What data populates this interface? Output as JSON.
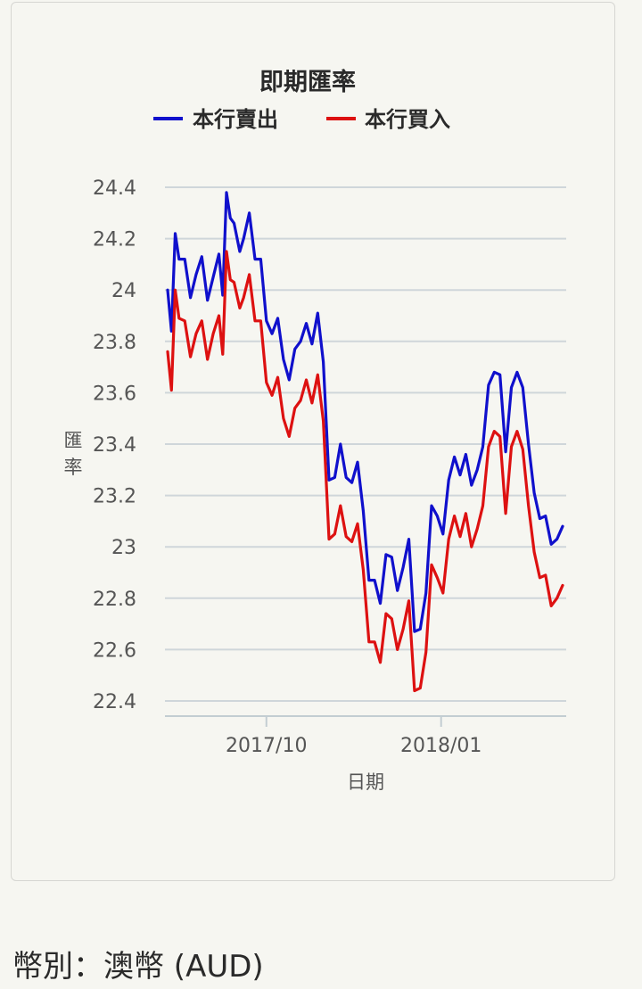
{
  "chart_data": {
    "type": "line",
    "title": "即期匯率",
    "xlabel": "日期",
    "ylabel": "匯率",
    "legend_position": "top-center",
    "grid": true,
    "ylim": [
      22.4,
      24.4
    ],
    "yticks": [
      "24.4",
      "24.2",
      "24",
      "23.8",
      "23.6",
      "23.4",
      "23.2",
      "23",
      "22.8",
      "22.6",
      "22.4"
    ],
    "xticks": [
      {
        "label": "2017/10",
        "date": "2017-10-01"
      },
      {
        "label": "2018/01",
        "date": "2018-01-01"
      }
    ],
    "x": [
      "2017-08-10",
      "2017-08-12",
      "2017-08-14",
      "2017-08-16",
      "2017-08-19",
      "2017-08-22",
      "2017-08-25",
      "2017-08-28",
      "2017-08-31",
      "2017-09-03",
      "2017-09-06",
      "2017-09-08",
      "2017-09-10",
      "2017-09-12",
      "2017-09-14",
      "2017-09-17",
      "2017-09-19",
      "2017-09-22",
      "2017-09-25",
      "2017-09-28",
      "2017-10-01",
      "2017-10-04",
      "2017-10-07",
      "2017-10-10",
      "2017-10-13",
      "2017-10-16",
      "2017-10-19",
      "2017-10-22",
      "2017-10-25",
      "2017-10-28",
      "2017-10-31",
      "2017-11-03",
      "2017-11-06",
      "2017-11-09",
      "2017-11-12",
      "2017-11-15",
      "2017-11-18",
      "2017-11-21",
      "2017-11-24",
      "2017-11-27",
      "2017-11-30",
      "2017-12-03",
      "2017-12-06",
      "2017-12-09",
      "2017-12-12",
      "2017-12-15",
      "2017-12-18",
      "2017-12-21",
      "2017-12-24",
      "2017-12-27",
      "2017-12-30",
      "2018-01-02",
      "2018-01-05",
      "2018-01-08",
      "2018-01-11",
      "2018-01-14",
      "2018-01-17",
      "2018-01-20",
      "2018-01-23",
      "2018-01-26",
      "2018-01-29",
      "2018-02-01",
      "2018-02-04",
      "2018-02-07",
      "2018-02-10",
      "2018-02-13",
      "2018-02-16",
      "2018-02-19",
      "2018-02-22",
      "2018-02-25",
      "2018-02-28",
      "2018-03-03",
      "2018-03-06"
    ],
    "series": [
      {
        "name": "本行賣出",
        "color": "#1010cc",
        "values": [
          24.0,
          23.84,
          24.22,
          24.12,
          24.12,
          23.97,
          24.06,
          24.13,
          23.96,
          24.05,
          24.14,
          23.98,
          24.38,
          24.28,
          24.26,
          24.15,
          24.2,
          24.3,
          24.12,
          24.12,
          23.88,
          23.83,
          23.89,
          23.73,
          23.65,
          23.77,
          23.8,
          23.87,
          23.79,
          23.91,
          23.72,
          23.26,
          23.27,
          23.4,
          23.27,
          23.25,
          23.33,
          23.14,
          22.87,
          22.87,
          22.78,
          22.97,
          22.96,
          22.83,
          22.92,
          23.03,
          22.67,
          22.68,
          22.82,
          23.16,
          23.12,
          23.05,
          23.26,
          23.35,
          23.28,
          23.36,
          23.24,
          23.3,
          23.39,
          23.63,
          23.68,
          23.67,
          23.37,
          23.62,
          23.68,
          23.62,
          23.4,
          23.21,
          23.11,
          23.12,
          23.01,
          23.03,
          23.08
        ]
      },
      {
        "name": "本行買入",
        "color": "#dd1111",
        "values": [
          23.76,
          23.61,
          24.0,
          23.89,
          23.88,
          23.74,
          23.83,
          23.88,
          23.73,
          23.83,
          23.9,
          23.75,
          24.15,
          24.04,
          24.03,
          23.93,
          23.97,
          24.06,
          23.88,
          23.88,
          23.64,
          23.59,
          23.66,
          23.5,
          23.43,
          23.54,
          23.57,
          23.65,
          23.56,
          23.67,
          23.49,
          23.03,
          23.05,
          23.16,
          23.04,
          23.02,
          23.09,
          22.91,
          22.63,
          22.63,
          22.55,
          22.74,
          22.72,
          22.6,
          22.68,
          22.79,
          22.44,
          22.45,
          22.59,
          22.93,
          22.88,
          22.82,
          23.03,
          23.12,
          23.04,
          23.13,
          23.0,
          23.07,
          23.16,
          23.39,
          23.45,
          23.43,
          23.13,
          23.39,
          23.45,
          23.38,
          23.16,
          22.98,
          22.88,
          22.89,
          22.77,
          22.8,
          22.85
        ]
      }
    ]
  },
  "footer": {
    "label": "幣別",
    "separator": "：",
    "value": "澳幣 (AUD)"
  }
}
